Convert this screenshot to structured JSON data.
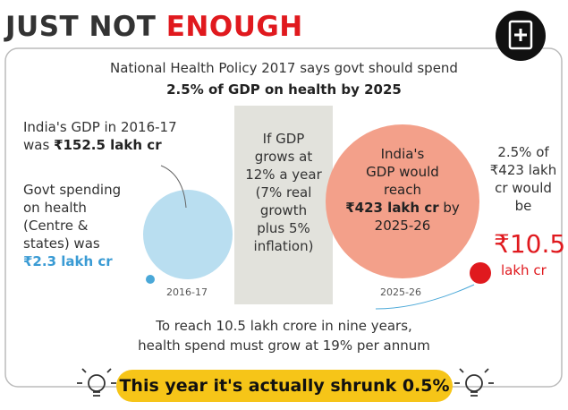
{
  "header": {
    "title": "JUST NOT",
    "title_highlight": "ENOUGH"
  },
  "intro": {
    "line": "National Health Policy 2017 says govt should spend",
    "emphasis": "2.5% of GDP on health by 2025"
  },
  "left": {
    "gdp_lines": [
      "India's GDP in 2016-17",
      "was"
    ],
    "gdp_value": "₹152.5 lakh cr",
    "spend_lines": [
      "Govt spending",
      "on health",
      "(Centre &",
      "states) was"
    ],
    "spend_value": "₹2.3 lakh cr",
    "year": "2016-17"
  },
  "middle": {
    "lines": [
      "If GDP",
      "grows at",
      "12% a year",
      "(7% real",
      "growth",
      "plus 5%",
      "inflation)"
    ]
  },
  "right": {
    "gdp_lines": [
      "India's",
      "GDP would",
      "reach"
    ],
    "gdp_value": "₹423 lakh cr",
    "gdp_suffix": "by",
    "gdp_end": "2025-26",
    "year": "2025-26",
    "spend_lines": [
      "2.5% of",
      "₹423 lakh",
      "cr would",
      "be"
    ],
    "spend_value": "₹10.5",
    "spend_unit": "lakh cr"
  },
  "footer": {
    "lines": [
      "To reach 10.5 lakh crore in nine years,",
      "health spend must grow at 19% per annum"
    ],
    "banner": "This year it's actually shrunk 0.5%"
  }
}
